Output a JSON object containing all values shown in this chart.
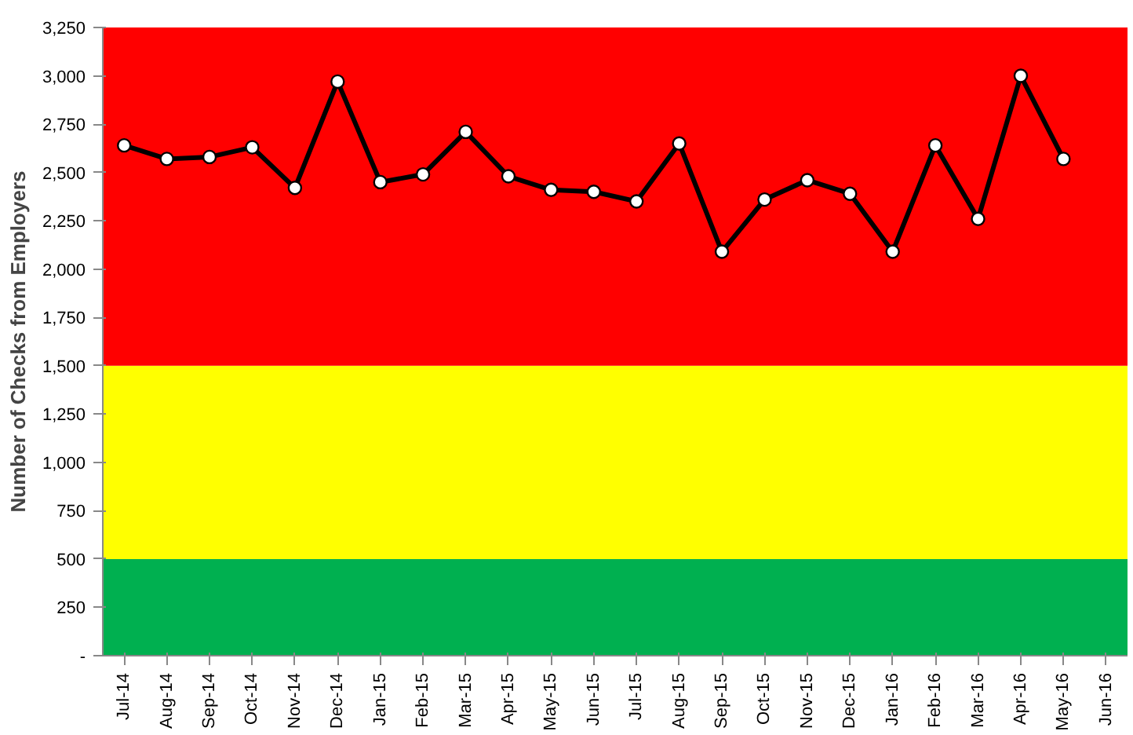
{
  "chart_data": {
    "type": "line",
    "ylabel": "Number of Checks from Employers",
    "categories": [
      "Jul-14",
      "Aug-14",
      "Sep-14",
      "Oct-14",
      "Nov-14",
      "Dec-14",
      "Jan-15",
      "Feb-15",
      "Mar-15",
      "Apr-15",
      "May-15",
      "Jun-15",
      "Jul-15",
      "Aug-15",
      "Sep-15",
      "Oct-15",
      "Nov-15",
      "Dec-15",
      "Jan-16",
      "Feb-16",
      "Mar-16",
      "Apr-16",
      "May-16",
      "Jun-16"
    ],
    "series": [
      {
        "color": "#000000",
        "values": [
          2640,
          2570,
          2580,
          2630,
          2420,
          2970,
          2450,
          2490,
          2710,
          2480,
          2410,
          2400,
          2350,
          2650,
          2090,
          2360,
          2460,
          2390,
          2090,
          2640,
          2260,
          3000,
          2570,
          null
        ]
      }
    ],
    "ylim": [
      0,
      3250
    ],
    "yticks": [
      {
        "value": 0,
        "label": "-"
      },
      {
        "value": 250,
        "label": "250"
      },
      {
        "value": 500,
        "label": "500"
      },
      {
        "value": 750,
        "label": "750"
      },
      {
        "value": 1000,
        "label": "1,000"
      },
      {
        "value": 1250,
        "label": "1,250"
      },
      {
        "value": 1500,
        "label": "1,500"
      },
      {
        "value": 1750,
        "label": "1,750"
      },
      {
        "value": 2000,
        "label": "2,000"
      },
      {
        "value": 2250,
        "label": "2,250"
      },
      {
        "value": 2500,
        "label": "2,500"
      },
      {
        "value": 2750,
        "label": "2,750"
      },
      {
        "value": 3000,
        "label": "3,000"
      },
      {
        "value": 3250,
        "label": "3,250"
      }
    ],
    "bands": [
      {
        "axis": "y",
        "from": 0,
        "to": 500,
        "color": "#00b050"
      },
      {
        "axis": "y",
        "from": 500,
        "to": 1500,
        "color": "#ffff00"
      },
      {
        "axis": "y",
        "from": 1500,
        "to": 3250,
        "color": "#ff0000"
      }
    ],
    "marker": "circle",
    "line_style": "solid"
  }
}
